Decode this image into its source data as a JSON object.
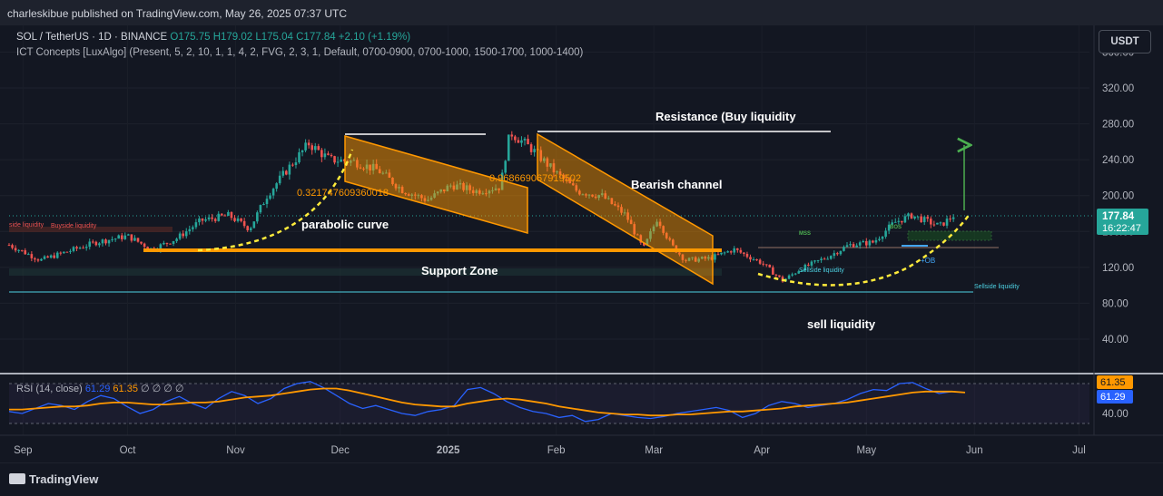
{
  "header": {
    "published": "charleskibue published on TradingView.com, May 26, 2025 07:37 UTC"
  },
  "legend": {
    "symbol": "SOL / TetherUS · 1D · BINANCE",
    "ohlc": "O175.75  H179.02  L175.04  C177.84  +2.10 (+1.19%)",
    "indicator": "ICT Concepts [LuxAlgo] (Present, 5, 2, 10, 1, 1, 4, 2, FVG, 2, 3, 1, Default, 0700-0900, 0700-1000, 1500-1700, 1000-1400)"
  },
  "currency_button": "USDT",
  "rsi_legend": {
    "label": "RSI (14, close)",
    "rsi": "61.29",
    "ma": "61.35",
    "extra": "∅ ∅ ∅ ∅"
  },
  "footer": {
    "brand": "TradingView"
  },
  "colors": {
    "up": "#26a69a",
    "down": "#ef5350",
    "accent": "#ff9800",
    "rsi": "#2962ff"
  },
  "chart_data": [
    {
      "type": "candlestick",
      "symbol": "SOL/USDT",
      "timeframe": "1D",
      "x_ticks": [
        "Sep",
        "Oct",
        "Nov",
        "Dec",
        "2025",
        "Feb",
        "Mar",
        "Apr",
        "May",
        "Jun",
        "Jul"
      ],
      "y_ticks": [
        "360.00",
        "320.00",
        "280.00",
        "240.00",
        "200.00",
        "160.00",
        "120.00",
        "80.00",
        "40.00"
      ],
      "ylim": [
        0,
        370
      ],
      "last_price": "177.84",
      "countdown": "16:22:47",
      "extra_price_labels": [],
      "price_path": [
        [
          "Aug 28",
          145
        ],
        [
          "Sep 6",
          128
        ],
        [
          "Sep 14",
          138
        ],
        [
          "Sep 22",
          148
        ],
        [
          "Oct 1",
          155
        ],
        [
          "Oct 8",
          140
        ],
        [
          "Oct 15",
          152
        ],
        [
          "Oct 22",
          172
        ],
        [
          "Oct 30",
          178
        ],
        [
          "Nov 5",
          163
        ],
        [
          "Nov 10",
          200
        ],
        [
          "Nov 16",
          230
        ],
        [
          "Nov 22",
          258
        ],
        [
          "Nov 28",
          240
        ],
        [
          "Dec 5",
          238
        ],
        [
          "Dec 12",
          228
        ],
        [
          "Dec 19",
          206
        ],
        [
          "Dec 26",
          195
        ],
        [
          "Jan 2",
          212
        ],
        [
          "Jan 9",
          205
        ],
        [
          "Jan 16",
          210
        ],
        [
          "Jan 18",
          258
        ],
        [
          "Jan 19",
          270
        ],
        [
          "Jan 25",
          252
        ],
        [
          "Feb 1",
          225
        ],
        [
          "Feb 7",
          205
        ],
        [
          "Feb 14",
          200
        ],
        [
          "Feb 21",
          178
        ],
        [
          "Feb 26",
          140
        ],
        [
          "Mar 2",
          175
        ],
        [
          "Mar 6",
          145
        ],
        [
          "Mar 10",
          128
        ],
        [
          "Mar 17",
          130
        ],
        [
          "Mar 24",
          140
        ],
        [
          "Apr 1",
          125
        ],
        [
          "Apr 7",
          105
        ],
        [
          "Apr 12",
          118
        ],
        [
          "Apr 20",
          132
        ],
        [
          "Apr 26",
          145
        ],
        [
          "May 3",
          148
        ],
        [
          "May 9",
          170
        ],
        [
          "May 14",
          178
        ],
        [
          "May 18",
          172
        ],
        [
          "May 22",
          166
        ],
        [
          "May 26",
          177.84
        ]
      ],
      "annotations": [
        {
          "id": "resistance",
          "text": "Resistance (Buy liquidity"
        },
        {
          "id": "bearish",
          "text": "Bearish channel"
        },
        {
          "id": "parabolic",
          "text": "parabolic curve"
        },
        {
          "id": "support",
          "text": "Support Zone"
        },
        {
          "id": "sell",
          "text": "sell liquidity"
        },
        {
          "id": "fib1",
          "text": "0.321747609360018"
        },
        {
          "id": "fib2",
          "text": "0.968669067919502"
        },
        {
          "id": "bsl_left",
          "text": "side liquidity"
        },
        {
          "id": "bsl",
          "text": "Buyside liquidity"
        },
        {
          "id": "ssl",
          "text": "Sellside liquidity"
        },
        {
          "id": "ssl_mid",
          "text": "Sellside liquidity"
        },
        {
          "id": "mss",
          "text": "MSS"
        },
        {
          "id": "bos",
          "text": "BOS"
        },
        {
          "id": "ob",
          "text": "+OB"
        }
      ]
    },
    {
      "type": "line",
      "title": "RSI (14, close)",
      "y_ticks": [
        "40.00"
      ],
      "ylim": [
        20,
        80
      ],
      "rsi_last": "61.29",
      "ma_last": "61.35",
      "series": [
        {
          "name": "RSI",
          "values": [
            42,
            40,
            45,
            50,
            48,
            44,
            52,
            58,
            55,
            47,
            40,
            44,
            52,
            57,
            50,
            45,
            55,
            62,
            58,
            50,
            55,
            65,
            70,
            72,
            66,
            58,
            50,
            45,
            48,
            44,
            40,
            38,
            42,
            44,
            48,
            64,
            66,
            60,
            52,
            46,
            42,
            40,
            36,
            38,
            32,
            34,
            40,
            38,
            36,
            35,
            37,
            40,
            42,
            44,
            46,
            43,
            36,
            40,
            48,
            52,
            50,
            46,
            48,
            50,
            54,
            60,
            64,
            63,
            70,
            71,
            65,
            60,
            62,
            61
          ]
        },
        {
          "name": "MA",
          "values": [
            44,
            44,
            45,
            46,
            47,
            47,
            48,
            50,
            51,
            51,
            50,
            49,
            49,
            50,
            51,
            51,
            52,
            54,
            56,
            57,
            58,
            60,
            62,
            64,
            65,
            65,
            63,
            60,
            57,
            54,
            51,
            49,
            48,
            47,
            47,
            50,
            52,
            54,
            55,
            54,
            52,
            50,
            47,
            45,
            43,
            41,
            40,
            39,
            39,
            38,
            38,
            39,
            39,
            40,
            41,
            42,
            42,
            43,
            44,
            45,
            47,
            48,
            49,
            50,
            51,
            53,
            55,
            57,
            59,
            61,
            62,
            62,
            62,
            61
          ]
        }
      ]
    }
  ]
}
